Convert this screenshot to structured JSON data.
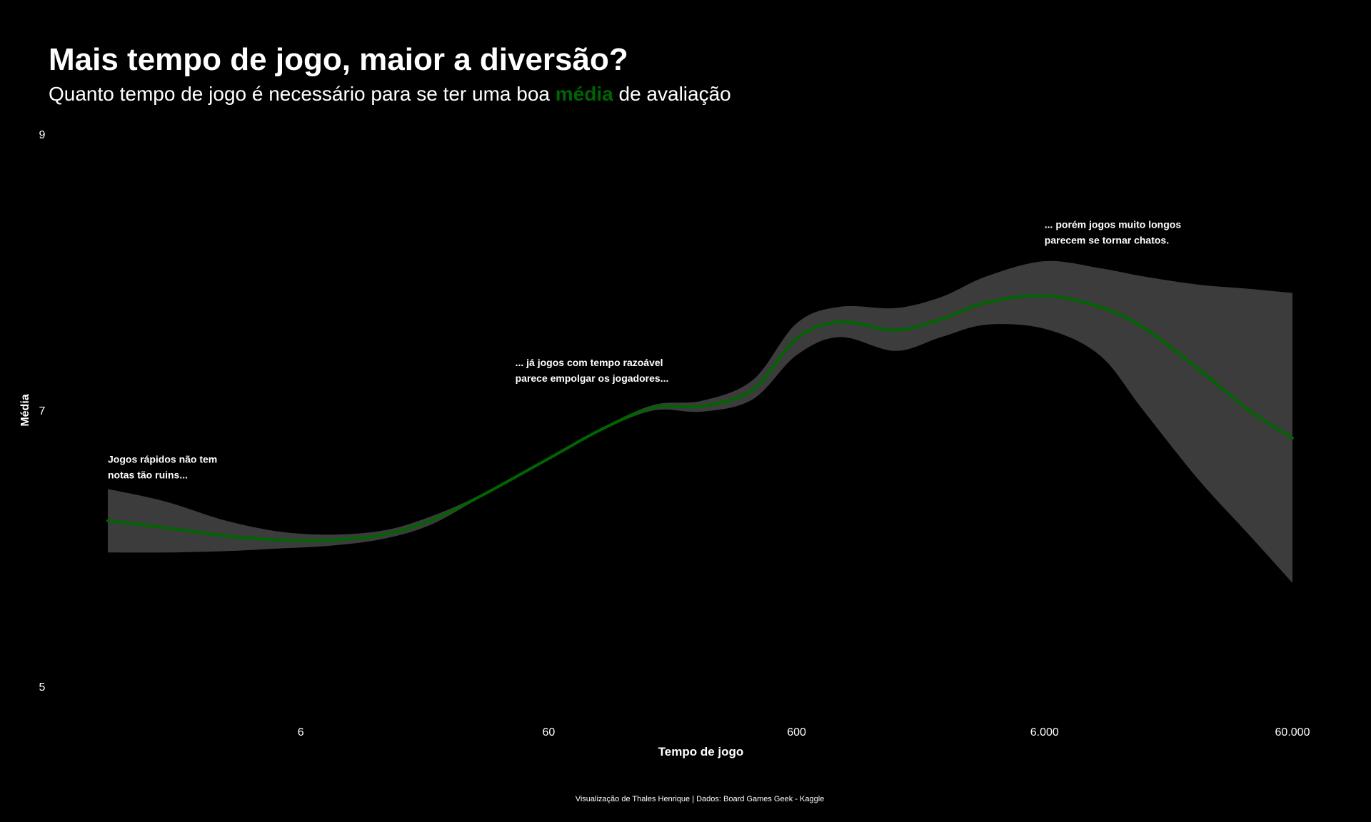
{
  "chart_data": {
    "type": "line",
    "title": "Mais tempo de jogo, maior a diversão?",
    "subtitle": {
      "before": "Quanto tempo de jogo é necessário para se ter uma boa ",
      "highlight": "média",
      "after": " de avaliação"
    },
    "xlabel": "Tempo de jogo",
    "ylabel": "Média",
    "x_scale": "log10",
    "xlim": [
      1,
      60000
    ],
    "ylim": [
      5,
      9
    ],
    "x_ticks": [
      6,
      60,
      600,
      6000,
      60000
    ],
    "x_tick_labels": [
      "6",
      "60",
      "600",
      "6.000",
      "60.000"
    ],
    "y_ticks": [
      5,
      7,
      9
    ],
    "y_tick_labels": [
      "5",
      "7",
      "9"
    ],
    "grid": false,
    "series": [
      {
        "values_x": [
          1,
          1.7,
          3,
          5,
          8,
          13,
          20,
          32,
          60,
          100,
          160,
          250,
          400,
          600,
          900,
          1500,
          2300,
          3500,
          6000,
          10000,
          15000,
          25000,
          40000,
          60000
        ],
        "values_y": [
          6.2,
          6.15,
          6.09,
          6.06,
          6.06,
          6.1,
          6.2,
          6.38,
          6.65,
          6.87,
          7.02,
          7.03,
          7.15,
          7.52,
          7.64,
          7.58,
          7.66,
          7.78,
          7.83,
          7.75,
          7.6,
          7.3,
          7.0,
          6.8
        ],
        "ci_lower": [
          5.97,
          5.97,
          5.98,
          6.0,
          6.02,
          6.07,
          6.17,
          6.37,
          6.64,
          6.86,
          7.0,
          6.99,
          7.08,
          7.4,
          7.53,
          7.43,
          7.53,
          7.62,
          7.59,
          7.4,
          7.0,
          6.5,
          6.1,
          5.75
        ],
        "ci_upper": [
          6.43,
          6.34,
          6.2,
          6.12,
          6.1,
          6.13,
          6.23,
          6.39,
          6.66,
          6.88,
          7.04,
          7.07,
          7.22,
          7.63,
          7.75,
          7.74,
          7.82,
          7.97,
          8.08,
          8.03,
          7.97,
          7.91,
          7.88,
          7.85
        ]
      }
    ],
    "annotations": [
      {
        "x": 1,
        "y": 6.62,
        "lines": [
          "Jogos rápidos não tem",
          "notas tão ruins..."
        ]
      },
      {
        "x": 44,
        "y": 7.32,
        "lines": [
          "... já jogos com tempo razoável",
          "parece empolgar os jogadores..."
        ]
      },
      {
        "x": 6000,
        "y": 8.32,
        "lines": [
          "... porém jogos muito longos",
          "parecem se tornar chatos."
        ]
      }
    ],
    "caption": "Visualização de Thales Henrique | Dados: Board Games Geek - Kaggle",
    "colors": {
      "background": "#000000",
      "line": "#006400",
      "ribbon": "#3c3c3c",
      "text": "#ffffff"
    }
  }
}
